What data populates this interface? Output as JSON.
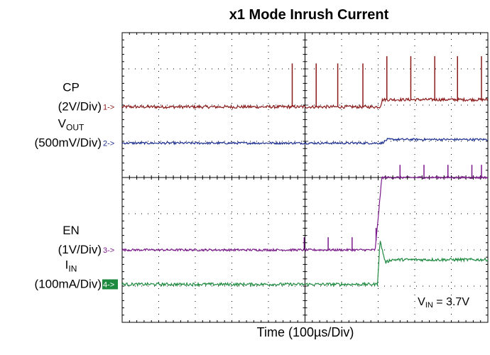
{
  "chart_data": {
    "type": "line",
    "title": "x1 Mode Inrush Current",
    "xlabel": "Time (100µs/Div)",
    "x_divisions": 10,
    "y_divisions": 8,
    "grid": true,
    "annotation": {
      "prefix": "V",
      "sub": "IN",
      "suffix": " = 3.7V"
    },
    "channels": [
      {
        "id": "1",
        "marker": "1->",
        "label_main": "CP",
        "label_sub": "",
        "scale": "(2V/Div)",
        "color": "#8b1a1a",
        "baseline_div": 5.95,
        "x_div": [
          0,
          7.05,
          7.12,
          10
        ],
        "y_div": [
          0,
          0,
          0.2,
          0.2
        ],
        "spikes_x_div": [
          7.1,
          8.1,
          9.0,
          10.05,
          11.05,
          12.05,
          13.05,
          14.0,
          15.0
        ],
        "spike_height_div": 1.2,
        "noise_div": 0.04
      },
      {
        "id": "2",
        "marker": "2->",
        "label_main": "V",
        "label_sub": "OUT",
        "scale": "(500mV/Div)",
        "color": "#1c2f8f",
        "baseline_div": 4.95,
        "x_div": [
          0,
          7.1,
          7.25,
          10
        ],
        "y_div": [
          0,
          0,
          0.1,
          0.1
        ],
        "noise_div": 0.03
      },
      {
        "id": "3",
        "marker": "3->",
        "label_main": "EN",
        "label_sub": "",
        "scale": "(1V/Div)",
        "color": "#7a1a8a",
        "baseline_div": 2.0,
        "x_div": [
          0,
          6.92,
          7.1,
          10
        ],
        "y_div": [
          0,
          0,
          2.0,
          2.0
        ],
        "spikes_x_div": [
          7.6,
          8.6,
          9.6,
          10.6,
          11.6,
          12.6,
          13.6,
          14.6,
          15.0
        ],
        "spike_height_div": 0.35,
        "noise_div": 0.03
      },
      {
        "id": "4",
        "marker": "4->",
        "label_main": "I",
        "label_sub": "IN",
        "scale": "(100mA/Div)",
        "color": "#1e8a40",
        "baseline_div": 1.05,
        "x_div": [
          0,
          6.98,
          7.05,
          7.2,
          7.35,
          10
        ],
        "y_div": [
          0,
          0,
          1.2,
          0.6,
          0.68,
          0.68
        ],
        "noise_div": 0.04
      }
    ]
  }
}
